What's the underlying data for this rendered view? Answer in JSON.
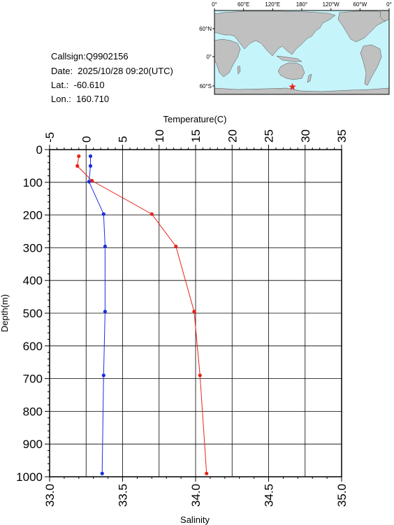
{
  "header": {
    "callsign": "Callsign:Q9902156",
    "date": "Date:  2025/10/28 09:20(UTC)",
    "lat": "Lat.:  -60.610",
    "lon": "Lon.:  160.710"
  },
  "map": {
    "top_labels": [
      "0°",
      "60°E",
      "120°E",
      "180°",
      "120°W",
      "60°W",
      "0°"
    ],
    "lat_labels": [
      "60°N",
      "0°",
      "60°S"
    ],
    "station_marker": {
      "lat": -60.61,
      "lon": 160.71,
      "color": "#e8231b"
    },
    "colors": {
      "ocean": "#c6f4fb",
      "land": "#c0c0c0"
    }
  },
  "chart_data": {
    "type": "line",
    "ylabel": "Depth(m)",
    "y_ticks": [
      "0",
      "100",
      "200",
      "300",
      "400",
      "500",
      "600",
      "700",
      "800",
      "900",
      "1000"
    ],
    "ylim": [
      0,
      1000
    ],
    "y_inverted": true,
    "grid": true,
    "temperature_axis": {
      "label": "Temperature(C)",
      "position": "top",
      "ticks": [
        "-5",
        "0",
        "5",
        "10",
        "15",
        "20",
        "25",
        "30",
        "35"
      ],
      "range": [
        -5,
        35
      ]
    },
    "salinity_axis": {
      "label": "Salinity",
      "position": "bottom",
      "ticks": [
        "33.0",
        "33.5",
        "34.0",
        "34.5",
        "35.0"
      ],
      "range": [
        33.0,
        35.0
      ]
    },
    "series": [
      {
        "axis": "temperature",
        "color": "#e8231b",
        "points": [
          {
            "depth": 20,
            "value": -1.0
          },
          {
            "depth": 50,
            "value": -1.2
          },
          {
            "depth": 95,
            "value": 0.8
          },
          {
            "depth": 197,
            "value": 9.0
          },
          {
            "depth": 296,
            "value": 12.3
          },
          {
            "depth": 495,
            "value": 14.8
          },
          {
            "depth": 690,
            "value": 15.6
          },
          {
            "depth": 990,
            "value": 16.5
          }
        ]
      },
      {
        "axis": "salinity",
        "color": "#1a2ee0",
        "points": [
          {
            "depth": 20,
            "value": 33.28
          },
          {
            "depth": 50,
            "value": 33.28
          },
          {
            "depth": 98,
            "value": 33.27
          },
          {
            "depth": 197,
            "value": 33.37
          },
          {
            "depth": 296,
            "value": 33.38
          },
          {
            "depth": 495,
            "value": 33.38
          },
          {
            "depth": 690,
            "value": 33.37
          },
          {
            "depth": 990,
            "value": 33.36
          }
        ]
      }
    ]
  }
}
